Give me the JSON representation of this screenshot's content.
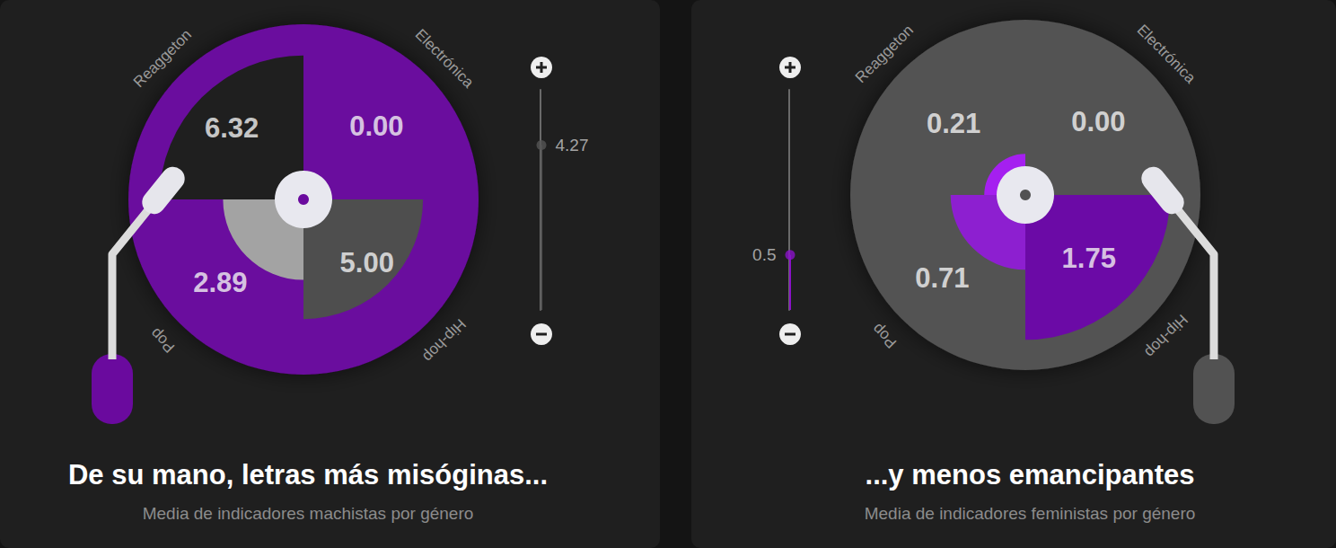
{
  "chart_data": [
    {
      "type": "rose",
      "title": "De su mano, letras más misóginas...",
      "subtitle": "Media de indicadores machistas por género",
      "categories": [
        "Reaggeton",
        "Electrónica",
        "Hip-hop",
        "Pop"
      ],
      "values": [
        6.32,
        0,
        5,
        2.89
      ],
      "value_labels": [
        "6.32",
        "0.00",
        "5.00",
        "2.89"
      ],
      "colors": [
        "#1f1f1f",
        "#6a0a9e",
        "#4e4e4e",
        "#a3a3a3"
      ],
      "color": "#6a0a9e",
      "ylim": [
        0,
        8
      ],
      "tick_labels": false,
      "data_labels": true,
      "slider": {
        "value": 4.27,
        "range": [
          0,
          5.7
        ],
        "color": "#555555"
      }
    },
    {
      "type": "rose",
      "title": "...y menos emancipantes",
      "subtitle": "Media de indicadores feministas por género",
      "categories": [
        "Reaggeton",
        "Electrónica",
        "Hip-hop",
        "Pop"
      ],
      "values": [
        0.21,
        0,
        1.75,
        0.71
      ],
      "value_labels": [
        "0.21",
        "0.00",
        "1.75",
        "0.71"
      ],
      "colors": [
        "#a51ff0",
        "#525252",
        "#6b0aa6",
        "#8d1fd0"
      ],
      "color": "#525252",
      "ylim": [
        0,
        2.2
      ],
      "tick_labels": false,
      "data_labels": true,
      "slider": {
        "value": 0.5,
        "range": [
          0,
          2
        ],
        "color": "#8a12c8"
      }
    }
  ]
}
